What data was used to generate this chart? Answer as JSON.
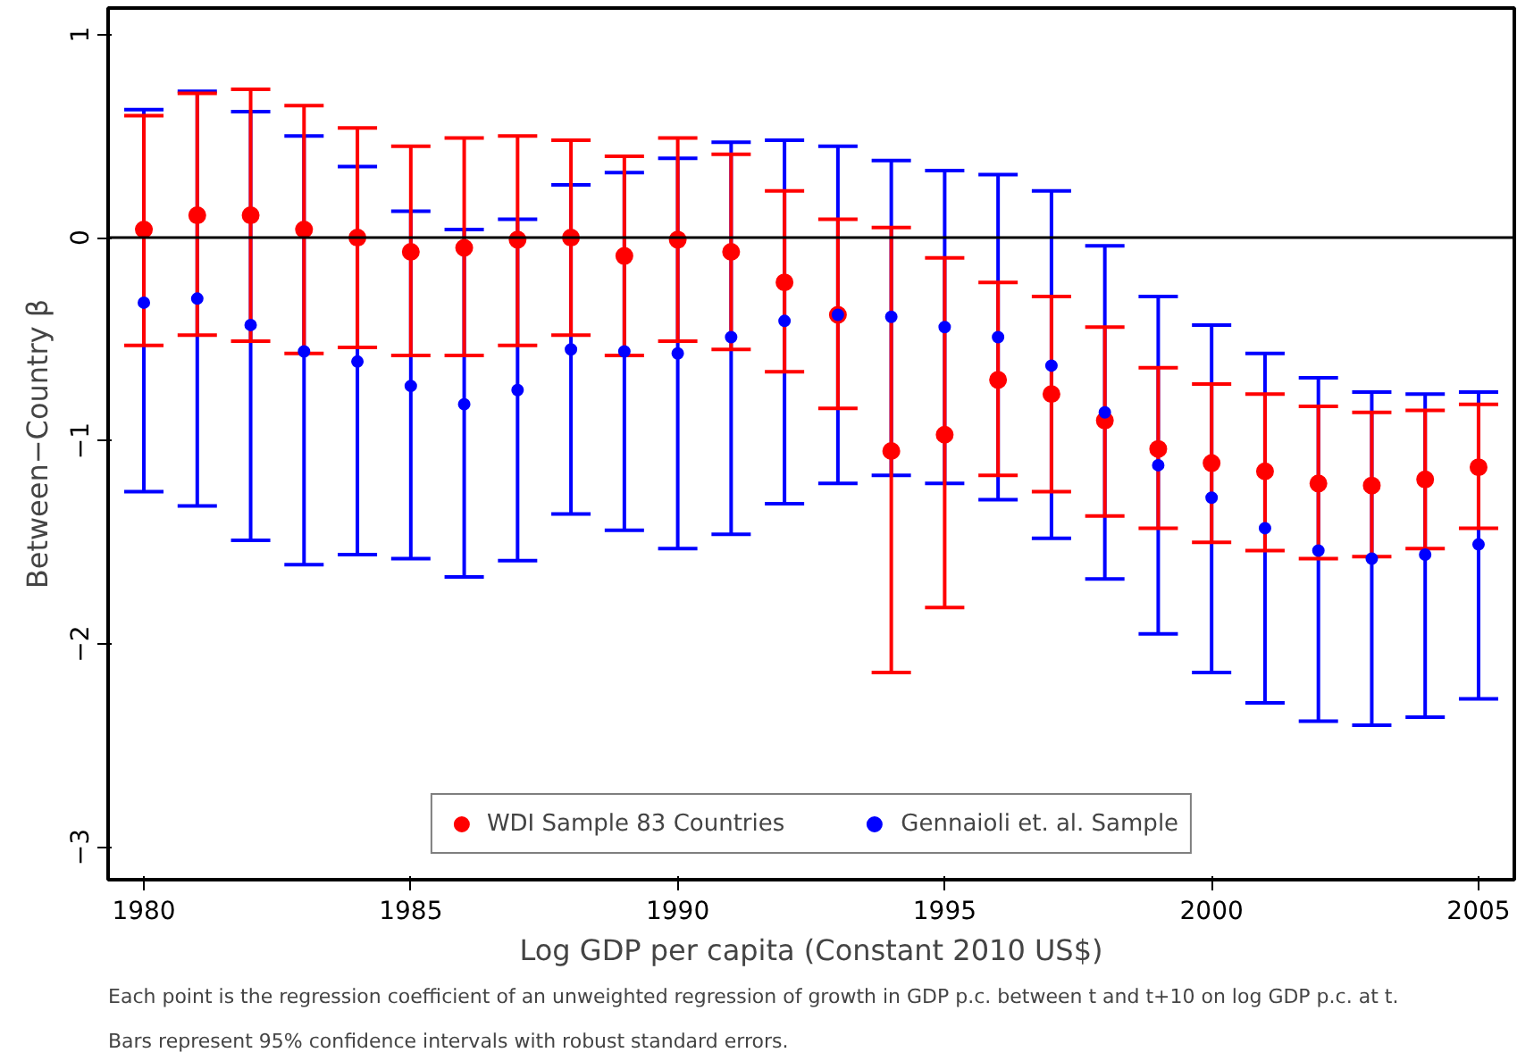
{
  "chart_data": {
    "type": "scatter",
    "xlabel": "Log GDP per capita (Constant 2010 US$)",
    "ylabel": "Between−Country β",
    "x": [
      1980,
      1981,
      1982,
      1983,
      1984,
      1985,
      1986,
      1987,
      1988,
      1989,
      1990,
      1991,
      1992,
      1993,
      1994,
      1995,
      1996,
      1997,
      1998,
      1999,
      2000,
      2001,
      2002,
      2003,
      2004,
      2005
    ],
    "series": [
      {
        "name": "WDI Sample 83 Countries",
        "color": "#ff0000",
        "values": [
          0.04,
          0.11,
          0.11,
          0.04,
          0.0,
          -0.07,
          -0.05,
          -0.01,
          0.0,
          -0.09,
          -0.01,
          -0.07,
          -0.22,
          -0.38,
          -1.05,
          -0.97,
          -0.7,
          -0.77,
          -0.9,
          -1.04,
          -1.11,
          -1.15,
          -1.21,
          -1.22,
          -1.19,
          -1.13
        ],
        "errors": [
          [
            -0.53,
            0.6
          ],
          [
            -0.48,
            0.71
          ],
          [
            -0.51,
            0.73
          ],
          [
            -0.57,
            0.65
          ],
          [
            -0.54,
            0.54
          ],
          [
            -0.58,
            0.45
          ],
          [
            -0.58,
            0.49
          ],
          [
            -0.53,
            0.5
          ],
          [
            -0.48,
            0.48
          ],
          [
            -0.58,
            0.4
          ],
          [
            -0.51,
            0.49
          ],
          [
            -0.55,
            0.41
          ],
          [
            -0.66,
            0.23
          ],
          [
            -0.84,
            0.09
          ],
          [
            -2.14,
            0.05
          ],
          [
            -1.82,
            -0.1
          ],
          [
            -1.17,
            -0.22
          ],
          [
            -1.25,
            -0.29
          ],
          [
            -1.37,
            -0.44
          ],
          [
            -1.43,
            -0.64
          ],
          [
            -1.5,
            -0.72
          ],
          [
            -1.54,
            -0.77
          ],
          [
            -1.58,
            -0.83
          ],
          [
            -1.57,
            -0.86
          ],
          [
            -1.53,
            -0.85
          ],
          [
            -1.43,
            -0.82
          ]
        ]
      },
      {
        "name": "Gennaioli et. al. Sample",
        "color": "#0000ff",
        "values": [
          -0.32,
          -0.3,
          -0.43,
          -0.56,
          -0.61,
          -0.73,
          -0.82,
          -0.75,
          -0.55,
          -0.56,
          -0.57,
          -0.49,
          -0.41,
          -0.38,
          -0.39,
          -0.44,
          -0.49,
          -0.63,
          -0.86,
          -1.12,
          -1.28,
          -1.43,
          -1.54,
          -1.58,
          -1.56,
          -1.51
        ],
        "errors": [
          [
            -1.25,
            0.63
          ],
          [
            -1.32,
            0.72
          ],
          [
            -1.49,
            0.62
          ],
          [
            -1.61,
            0.5
          ],
          [
            -1.56,
            0.35
          ],
          [
            -1.58,
            0.13
          ],
          [
            -1.67,
            0.04
          ],
          [
            -1.59,
            0.09
          ],
          [
            -1.36,
            0.26
          ],
          [
            -1.44,
            0.32
          ],
          [
            -1.53,
            0.39
          ],
          [
            -1.46,
            0.47
          ],
          [
            -1.31,
            0.48
          ],
          [
            -1.21,
            0.45
          ],
          [
            -1.17,
            0.38
          ],
          [
            -1.21,
            0.33
          ],
          [
            -1.29,
            0.31
          ],
          [
            -1.48,
            0.23
          ],
          [
            -1.68,
            -0.04
          ],
          [
            -1.95,
            -0.29
          ],
          [
            -2.14,
            -0.43
          ],
          [
            -2.29,
            -0.57
          ],
          [
            -2.38,
            -0.69
          ],
          [
            -2.4,
            -0.76
          ],
          [
            -2.36,
            -0.77
          ],
          [
            -2.27,
            -0.76
          ]
        ]
      }
    ],
    "xlim": [
      1979.33,
      2005.67
    ],
    "ylim": [
      -3.16,
      1.13
    ],
    "xticks": [
      1980,
      1985,
      1990,
      1995,
      2000,
      2005
    ],
    "yticks": [
      {
        "value": -3,
        "label": "−3"
      },
      {
        "value": -2,
        "label": "−2"
      },
      {
        "value": -1,
        "label": "−1"
      },
      0,
      1
    ],
    "ref_lines": [
      {
        "axis": "y",
        "value": 0,
        "color": "#000000"
      }
    ],
    "marker": "circle",
    "grid": false,
    "legend": "bottom",
    "annotations": [
      "Each point is the regression coefficient of an unweighted regression of growth in GDP p.c. between t and t+10 on log GDP p.c. at t.",
      "Bars represent 95% confidence intervals with robust standard errors."
    ]
  }
}
